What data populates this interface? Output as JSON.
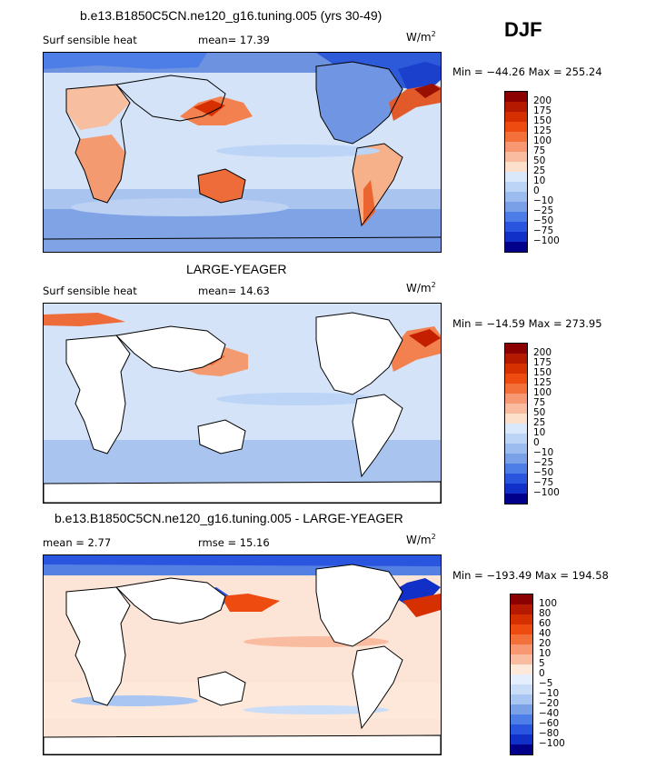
{
  "season": "DJF",
  "panels": [
    {
      "title": "b.e13.B1850C5CN.ne120_g16.tuning.005 (yrs 30-49)",
      "variable": "Surf sensible heat",
      "stat1": "mean=   17.39",
      "stat2": "",
      "units_base": "W/m",
      "units_exp": "2",
      "minmax": "Min = −44.26  Max = 255.24",
      "levels": [
        "200",
        "175",
        "150",
        "125",
        "100",
        "75",
        "50",
        "25",
        "10",
        "0",
        "−10",
        "−25",
        "−50",
        "−75",
        "−100"
      ],
      "colors": [
        "#8b0000",
        "#b51a00",
        "#d73000",
        "#ee4b10",
        "#f4703a",
        "#f79872",
        "#f9bca0",
        "#fde0cc",
        "#d9e9fb",
        "#bcd4f6",
        "#9cbcf0",
        "#7aa0e8",
        "#4d7de6",
        "#2a55df",
        "#1030c8",
        "#00008b"
      ]
    },
    {
      "title": "LARGE-YEAGER",
      "variable": "Surf sensible heat",
      "stat1": "mean=   14.63",
      "stat2": "",
      "units_base": "W/m",
      "units_exp": "2",
      "minmax": "Min = −14.59  Max = 273.95",
      "levels": [
        "200",
        "175",
        "150",
        "125",
        "100",
        "75",
        "50",
        "25",
        "10",
        "0",
        "−10",
        "−25",
        "−50",
        "−75",
        "−100"
      ],
      "colors": [
        "#8b0000",
        "#b51a00",
        "#d73000",
        "#ee4b10",
        "#f4703a",
        "#f79872",
        "#f9bca0",
        "#fde0cc",
        "#d9e9fb",
        "#bcd4f6",
        "#9cbcf0",
        "#7aa0e8",
        "#4d7de6",
        "#2a55df",
        "#1030c8",
        "#00008b"
      ]
    },
    {
      "title": "b.e13.B1850C5CN.ne120_g16.tuning.005 - LARGE-YEAGER",
      "variable": "mean =    2.77",
      "stat1": "rmse =   15.16",
      "stat2": "",
      "units_base": "W/m",
      "units_exp": "2",
      "minmax": "Min = −193.49  Max = 194.58",
      "levels": [
        "100",
        "80",
        "60",
        "40",
        "20",
        "10",
        "5",
        "0",
        "−5",
        "−10",
        "−20",
        "−40",
        "−60",
        "−80",
        "−100"
      ],
      "colors": [
        "#8b0000",
        "#b51a00",
        "#d73000",
        "#ee4b10",
        "#f4703a",
        "#f79872",
        "#f9bca0",
        "#fde8da",
        "#e4eefc",
        "#c9dcf8",
        "#a9c6f2",
        "#7aa0e8",
        "#4d7de6",
        "#2a55df",
        "#1030c8",
        "#00008b"
      ]
    }
  ]
}
